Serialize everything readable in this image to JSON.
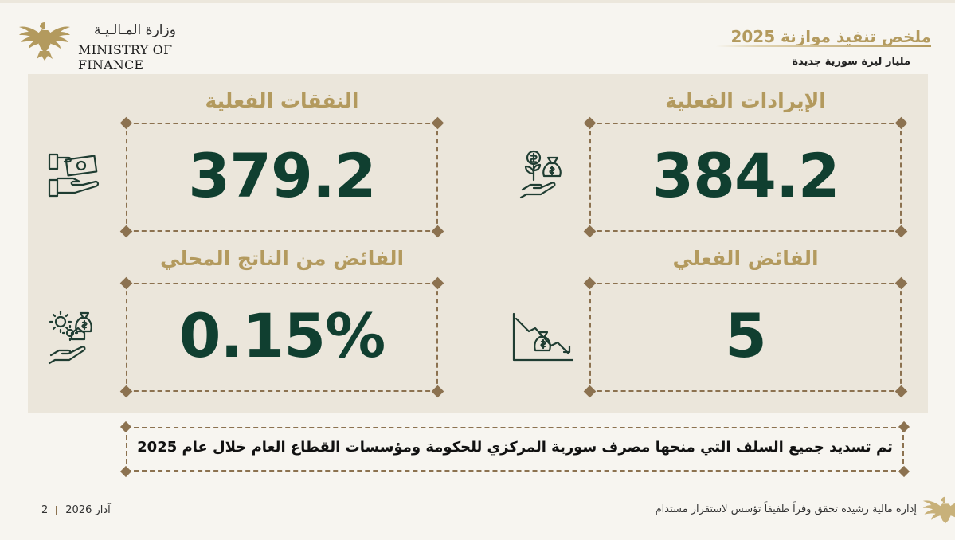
{
  "header": {
    "ministry_ar": "وزارة المـالـيـة",
    "ministry_en": "MINISTRY OF FINANCE",
    "title": "ملخص تنفيذ موازنة 2025",
    "unit": "مليار ليرة سورية جديدة"
  },
  "cards": {
    "revenue": {
      "label": "الإيرادات الفعلية",
      "value": "384.2",
      "icon": "money-bag-plant-hand-icon"
    },
    "expenditure": {
      "label": "النفقات الفعلية",
      "value": "379.2",
      "icon": "hand-cash-icon"
    },
    "surplus": {
      "label": "الفائض الفعلي",
      "value": "5",
      "icon": "declining-chart-moneybag-icon"
    },
    "surplus_gdp": {
      "label": "الفائض من الناتج المحلي",
      "value": "0.15%",
      "icon": "hand-gears-moneybag-icon"
    }
  },
  "note": "تم تسديد جميع السلف التي منحها مصرف سورية المركزي للحكومة ومؤسسات القطاع العام خلال عام 2025",
  "footer": {
    "page": "2",
    "date": "آذار 2026",
    "slogan": "إدارة مالية رشيدة تحقق وفراً طفيفاً تؤسس لاستقرار مستدام"
  },
  "colors": {
    "gold": "#b39a5e",
    "green": "#103f30",
    "panel": "#ebe6db",
    "border": "#8c7250"
  }
}
